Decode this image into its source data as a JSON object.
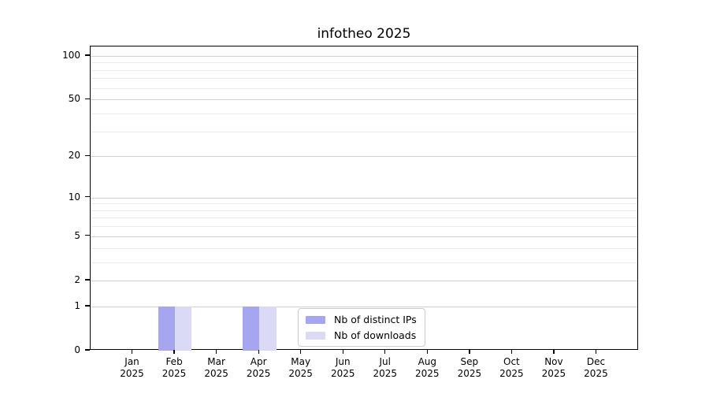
{
  "chart_data": {
    "type": "bar",
    "title": "infotheo 2025",
    "categories": [
      {
        "month": "Jan",
        "year": "2025"
      },
      {
        "month": "Feb",
        "year": "2025"
      },
      {
        "month": "Mar",
        "year": "2025"
      },
      {
        "month": "Apr",
        "year": "2025"
      },
      {
        "month": "May",
        "year": "2025"
      },
      {
        "month": "Jun",
        "year": "2025"
      },
      {
        "month": "Jul",
        "year": "2025"
      },
      {
        "month": "Aug",
        "year": "2025"
      },
      {
        "month": "Sep",
        "year": "2025"
      },
      {
        "month": "Oct",
        "year": "2025"
      },
      {
        "month": "Nov",
        "year": "2025"
      },
      {
        "month": "Dec",
        "year": "2025"
      }
    ],
    "series": [
      {
        "name": "Nb of distinct IPs",
        "color": "#a6a6f0",
        "values": [
          0,
          1,
          0,
          1,
          0,
          0,
          0,
          0,
          0,
          0,
          0,
          0
        ]
      },
      {
        "name": "Nb of downloads",
        "color": "#dadaf7",
        "values": [
          0,
          1,
          0,
          1,
          0,
          0,
          0,
          0,
          0,
          0,
          0,
          0
        ]
      }
    ],
    "y_axis": {
      "scale": "log1p",
      "ylim": [
        0,
        116
      ],
      "major_ticks": [
        0,
        1,
        2,
        5,
        10,
        20,
        50,
        100
      ],
      "minor_gridlines": [
        3,
        4,
        6,
        7,
        8,
        9,
        30,
        40,
        60,
        70,
        80,
        90
      ]
    },
    "x_axis": {
      "tick_label_lines": 2
    },
    "legend": {
      "position": "bottom-center"
    },
    "grid": "horizontal",
    "bar_width_fraction": 0.4,
    "colors": {
      "major_grid": "#cfcfcf",
      "minor_grid": "#ebebeb",
      "spine": "#000000",
      "background": "#ffffff",
      "legend_border": "#cccccc"
    }
  }
}
